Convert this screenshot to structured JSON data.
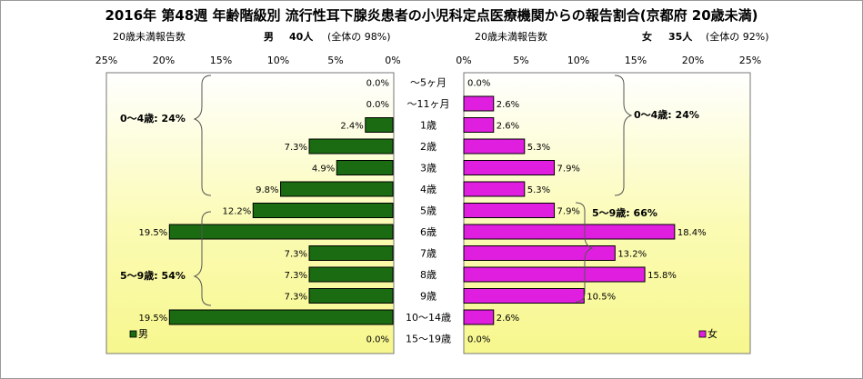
{
  "title": "2016年 第48週 年齢階級別 流行性耳下腺炎患者の小児科定点医療機関からの報告割合(京都府 20歳未満)",
  "male_header": {
    "label": "20歳未満報告数",
    "sex": "男",
    "count": "40人",
    "share": "(全体の  98%)"
  },
  "female_header": {
    "label": "20歳未満報告数",
    "sex": "女",
    "count": "35人",
    "share": "(全体の  92%)"
  },
  "brackets": {
    "male_0_4": "0〜4歳: 24%",
    "male_5_9": "5〜9歳: 54%",
    "female_0_4": "0〜4歳: 24%",
    "female_5_9": "5〜9歳: 66%"
  },
  "chart_data": [
    {
      "type": "bar",
      "orientation": "horizontal",
      "side": "left",
      "categories": [
        "〜5ヶ月",
        "〜11ヶ月",
        "1歳",
        "2歳",
        "3歳",
        "4歳",
        "5歳",
        "6歳",
        "7歳",
        "8歳",
        "9歳",
        "10〜14歳",
        "15〜19歳"
      ],
      "series": [
        {
          "name": "男",
          "values": [
            0.0,
            0.0,
            2.4,
            7.3,
            4.9,
            9.8,
            12.2,
            19.5,
            7.3,
            7.3,
            7.3,
            19.5,
            0.0
          ],
          "labels": [
            "0.0%",
            "0.0%",
            "2.4%",
            "7.3%",
            "4.9%",
            "9.8%",
            "12.2%",
            "19.5%",
            "7.3%",
            "7.3%",
            "7.3%",
            "19.5%",
            "0.0%"
          ]
        }
      ],
      "xlim": [
        0,
        25
      ],
      "x_ticks": [
        "25%",
        "20%",
        "15%",
        "10%",
        "5%",
        "0%"
      ],
      "x_reversed": true,
      "bar_color": "#1a6b11",
      "legend": "bottom-left"
    },
    {
      "type": "bar",
      "orientation": "horizontal",
      "side": "right",
      "categories": [
        "〜5ヶ月",
        "〜11ヶ月",
        "1歳",
        "2歳",
        "3歳",
        "4歳",
        "5歳",
        "6歳",
        "7歳",
        "8歳",
        "9歳",
        "10〜14歳",
        "15〜19歳"
      ],
      "series": [
        {
          "name": "女",
          "values": [
            0.0,
            2.6,
            2.6,
            5.3,
            7.9,
            5.3,
            7.9,
            18.4,
            13.2,
            15.8,
            10.5,
            2.6,
            0.0
          ],
          "labels": [
            "0.0%",
            "2.6%",
            "2.6%",
            "5.3%",
            "7.9%",
            "5.3%",
            "7.9%",
            "18.4%",
            "13.2%",
            "15.8%",
            "10.5%",
            "2.6%",
            "0.0%"
          ]
        }
      ],
      "xlim": [
        0,
        25
      ],
      "x_ticks": [
        "0%",
        "5%",
        "10%",
        "15%",
        "20%",
        "25%"
      ],
      "bar_color": "#e01ee0",
      "legend": "bottom-left"
    }
  ]
}
